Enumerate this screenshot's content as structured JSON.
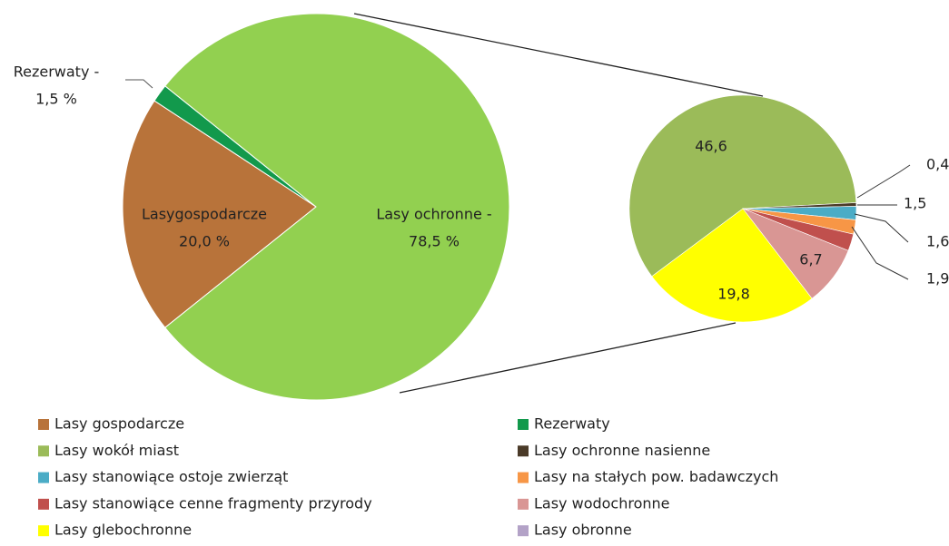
{
  "chart_data": {
    "type": "pie-of-pie",
    "main": {
      "labels": [
        "Lasygospodarcze",
        "Rezerwaty -",
        "Lasy ochronne -"
      ],
      "values": [
        20.0,
        1.5,
        78.5
      ],
      "value_labels": [
        "20,0 %",
        "1,5 %",
        "78,5 %"
      ],
      "colors": [
        "#b8733a",
        "#12994c",
        "#92d050"
      ]
    },
    "secondary": {
      "categories": [
        "Lasy wokół miast",
        "Lasy ochronne nasienne",
        "Lasy stanowiące ostoje zwierząt",
        "Lasy na stałych pow. badawczych",
        "Lasy stanowiące cenne fragmenty przyrody",
        "Lasy wodochronne",
        "Lasy glebochronne",
        "Lasy obronne"
      ],
      "values": [
        46.6,
        0.4,
        1.5,
        1.6,
        1.9,
        6.7,
        19.8,
        null
      ],
      "value_labels": [
        "46,6",
        "0,4",
        "1,5",
        "1,6",
        "1,9",
        "6,7",
        "19,8",
        null
      ],
      "colors": [
        "#9bbb59",
        "#4a3a28",
        "#4bacc6",
        "#f79646",
        "#c0504d",
        "#d99694",
        "#ffff00",
        "#b3a2c7"
      ]
    },
    "legend": {
      "names": [
        "Lasy gospodarcze",
        "Rezerwaty",
        "Lasy wokół miast",
        "Lasy ochronne nasienne",
        "Lasy stanowiące ostoje zwierząt",
        "Lasy na stałych pow. badawczych",
        "Lasy stanowiące cenne fragmenty przyrody",
        "Lasy wodochronne",
        "Lasy glebochronne",
        "Lasy obronne"
      ],
      "colors": [
        "#b8733a",
        "#12994c",
        "#9bbb59",
        "#4a3a28",
        "#4bacc6",
        "#f79646",
        "#c0504d",
        "#d99694",
        "#ffff00",
        "#b3a2c7"
      ]
    }
  }
}
